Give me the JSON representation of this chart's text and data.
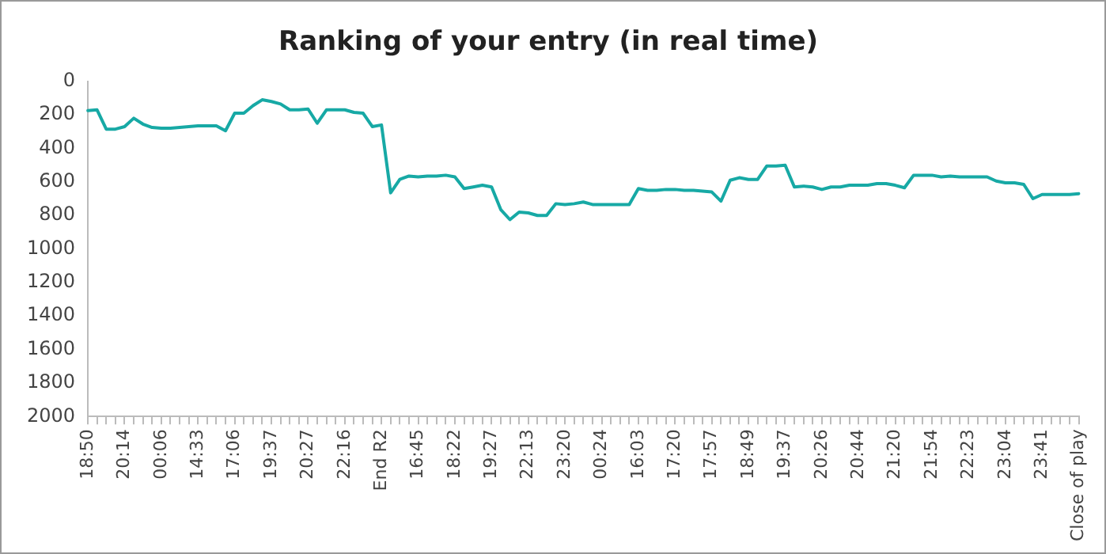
{
  "chart_data": {
    "type": "line",
    "title": "Ranking of your entry (in real time)",
    "categories": [
      "18:50",
      null,
      null,
      null,
      "20:14",
      null,
      null,
      null,
      "00:06",
      null,
      null,
      null,
      "14:33",
      null,
      null,
      null,
      "17:06",
      null,
      null,
      null,
      "19:37",
      null,
      null,
      null,
      "20:27",
      null,
      null,
      null,
      "22:16",
      null,
      null,
      null,
      "End R2",
      null,
      null,
      null,
      "16:45",
      null,
      null,
      null,
      "18:22",
      null,
      null,
      null,
      "19:27",
      null,
      null,
      null,
      "22:13",
      null,
      null,
      null,
      "23:20",
      null,
      null,
      null,
      "00:24",
      null,
      null,
      null,
      "16:03",
      null,
      null,
      null,
      "17:20",
      null,
      null,
      null,
      "17:57",
      null,
      null,
      null,
      "18:49",
      null,
      null,
      null,
      "19:37",
      null,
      null,
      null,
      "20:26",
      null,
      null,
      null,
      "20:44",
      null,
      null,
      null,
      "21:20",
      null,
      null,
      null,
      "21:54",
      null,
      null,
      null,
      "22:23",
      null,
      null,
      null,
      "23:04",
      null,
      null,
      null,
      "23:41",
      null,
      null,
      null,
      "Close of play"
    ],
    "series": [
      {
        "color": "#17a9a5",
        "values": [
          175,
          170,
          285,
          285,
          270,
          220,
          255,
          275,
          280,
          280,
          275,
          270,
          265,
          265,
          265,
          295,
          190,
          190,
          145,
          110,
          120,
          135,
          170,
          170,
          165,
          250,
          170,
          170,
          170,
          185,
          190,
          270,
          260,
          665,
          585,
          565,
          570,
          565,
          565,
          560,
          570,
          640,
          630,
          620,
          630,
          765,
          825,
          780,
          785,
          800,
          800,
          730,
          735,
          730,
          720,
          735,
          735,
          735,
          735,
          735,
          640,
          650,
          650,
          645,
          645,
          650,
          650,
          655,
          660,
          715,
          590,
          575,
          585,
          585,
          505,
          505,
          500,
          630,
          625,
          630,
          645,
          630,
          630,
          620,
          620,
          620,
          610,
          610,
          620,
          635,
          560,
          560,
          560,
          570,
          565,
          570,
          570,
          570,
          570,
          595,
          605,
          605,
          615,
          700,
          675,
          675,
          675,
          675,
          670
        ]
      }
    ],
    "ylim": [
      2000,
      0
    ],
    "yticks": [
      0,
      200,
      400,
      600,
      800,
      1000,
      1200,
      1400,
      1600,
      1800,
      2000
    ],
    "grid": false,
    "legend": false,
    "marker": "none",
    "line_style": "solid"
  }
}
